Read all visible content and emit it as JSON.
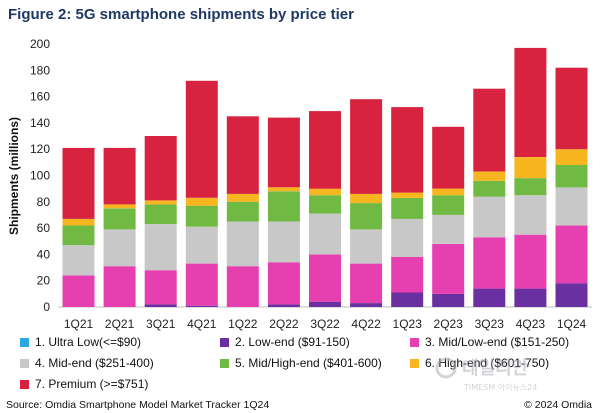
{
  "chart_data": {
    "type": "bar",
    "stacked": true,
    "title": "Figure 2: 5G smartphone shipments by price tier",
    "ylabel": "Shipments (millions)",
    "xlabel": "",
    "ylim": [
      0,
      200
    ],
    "yticks": [
      0,
      20,
      40,
      60,
      80,
      100,
      120,
      140,
      160,
      180,
      200
    ],
    "grid": false,
    "legend_position": "bottom",
    "categories": [
      "1Q21",
      "2Q21",
      "3Q21",
      "4Q21",
      "1Q22",
      "2Q22",
      "3Q22",
      "4Q22",
      "1Q23",
      "2Q23",
      "3Q23",
      "4Q23",
      "1Q24"
    ],
    "series": [
      {
        "name": "1. Ultra Low(<=$90)",
        "color": "#2ea8e0",
        "values": [
          0,
          0,
          0,
          0,
          0,
          0,
          0,
          0,
          0,
          0,
          0,
          0,
          0
        ]
      },
      {
        "name": "2. Low-end ($91-150)",
        "color": "#6a2fa0",
        "values": [
          0,
          0,
          2,
          1,
          0,
          2,
          4,
          3,
          11,
          10,
          14,
          14,
          18
        ]
      },
      {
        "name": "3. Mid/Low-end ($151-250)",
        "color": "#e63fb0",
        "values": [
          24,
          31,
          26,
          32,
          31,
          32,
          36,
          30,
          27,
          38,
          39,
          41,
          44
        ]
      },
      {
        "name": "4. Mid-end ($251-400)",
        "color": "#c8c8c8",
        "values": [
          23,
          28,
          35,
          28,
          34,
          31,
          31,
          26,
          29,
          22,
          31,
          30,
          29
        ]
      },
      {
        "name": "5. Mid/High-end ($401-600)",
        "color": "#70b943",
        "values": [
          15,
          16,
          15,
          16,
          15,
          23,
          14,
          20,
          16,
          15,
          12,
          13,
          17
        ]
      },
      {
        "name": "6. High-end ($601-750)",
        "color": "#f7b520",
        "values": [
          5,
          3,
          3,
          6,
          6,
          3,
          5,
          7,
          4,
          5,
          7,
          16,
          12
        ]
      },
      {
        "name": "7. Premium (>=$751)",
        "color": "#d7233f",
        "values": [
          54,
          43,
          49,
          89,
          59,
          53,
          59,
          72,
          65,
          47,
          63,
          83,
          62
        ]
      }
    ]
  },
  "source_note": "Source: Omdia Smartphone Model Market Tracker 1Q24",
  "copyright": "© 2024 Omdia",
  "watermark": {
    "main": "데일리안",
    "sub": "TIMESM 아이뉴스24"
  }
}
